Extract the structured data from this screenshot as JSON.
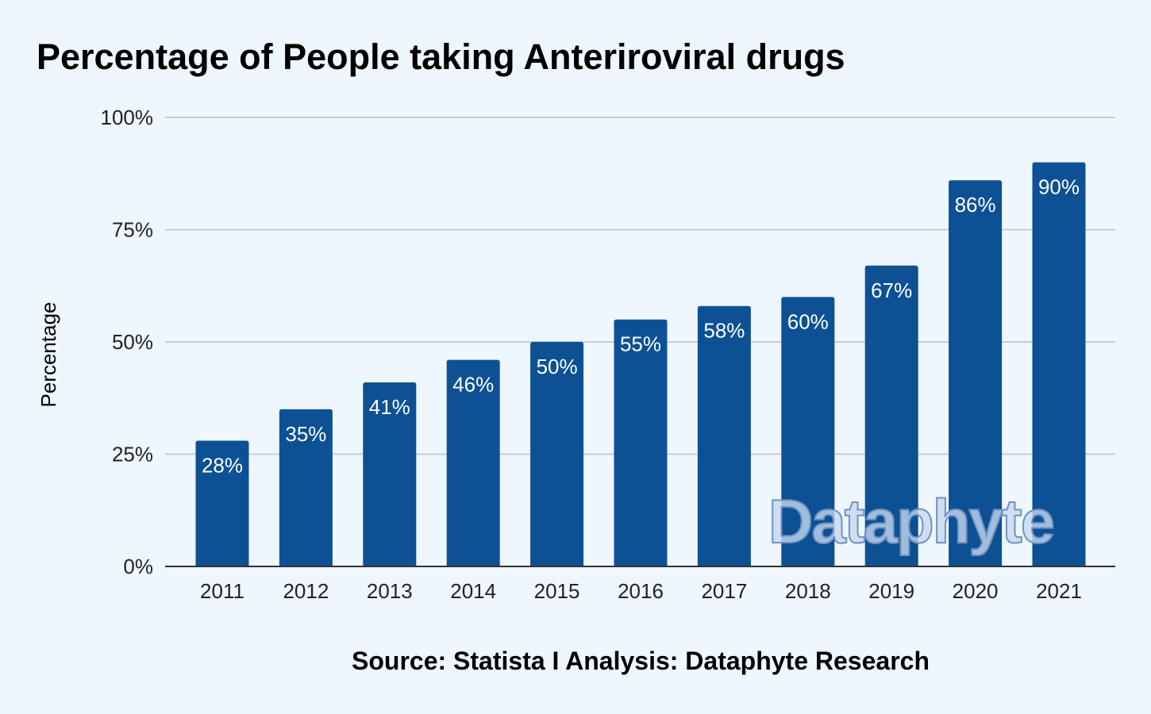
{
  "chart_data": {
    "type": "bar",
    "title": "Percentage of People taking Anteriroviral drugs",
    "xlabel": "",
    "ylabel": "Percentage",
    "categories": [
      "2011",
      "2012",
      "2013",
      "2014",
      "2015",
      "2016",
      "2017",
      "2018",
      "2019",
      "2020",
      "2021"
    ],
    "values": [
      28,
      35,
      41,
      46,
      50,
      55,
      58,
      60,
      67,
      86,
      90
    ],
    "data_labels": [
      "28%",
      "35%",
      "41%",
      "46%",
      "50%",
      "55%",
      "58%",
      "60%",
      "67%",
      "86%",
      "90%"
    ],
    "ylim": [
      0,
      100
    ],
    "yticks": [
      0,
      25,
      50,
      75,
      100
    ],
    "ytick_labels": [
      "0%",
      "25%",
      "50%",
      "75%",
      "100%"
    ],
    "grid": true,
    "legend": "none",
    "colors": {
      "bar": "#0d5194",
      "grid": "#c5cdd8",
      "axis": "#333333",
      "background": "#eef6fe"
    }
  },
  "watermark": "Dataphyte",
  "source": "Source: Statista I Analysis: Dataphyte Research"
}
